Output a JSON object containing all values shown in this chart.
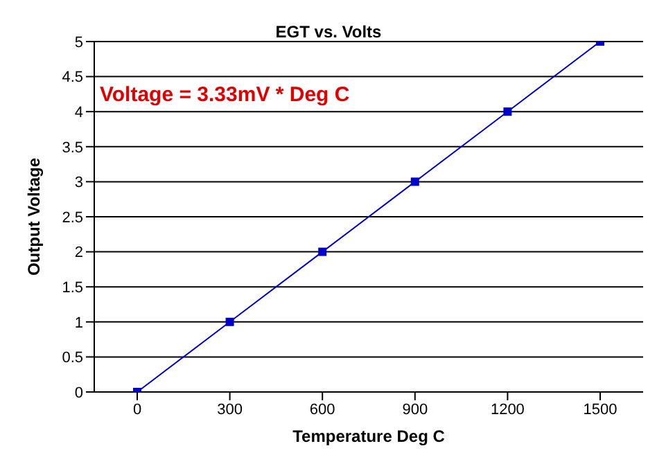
{
  "chart_data": {
    "type": "line",
    "title": "EGT vs. Volts",
    "xlabel": "Temperature Deg C",
    "ylabel": "Output Voltage",
    "categories": [
      "0",
      "300",
      "600",
      "900",
      "1200",
      "1500"
    ],
    "series": [
      {
        "color": "#0000cc",
        "values": [
          0,
          1,
          2,
          3,
          4,
          5
        ]
      }
    ],
    "ylim": [
      0,
      5
    ],
    "yticks": [
      0,
      0.5,
      1,
      1.5,
      2,
      2.5,
      3,
      3.5,
      4,
      4.5,
      5
    ],
    "grid": "y",
    "legend": false,
    "marker": "square",
    "line_style": "solid",
    "annotations": [
      "Voltage = 3.33mV * Deg C"
    ]
  }
}
